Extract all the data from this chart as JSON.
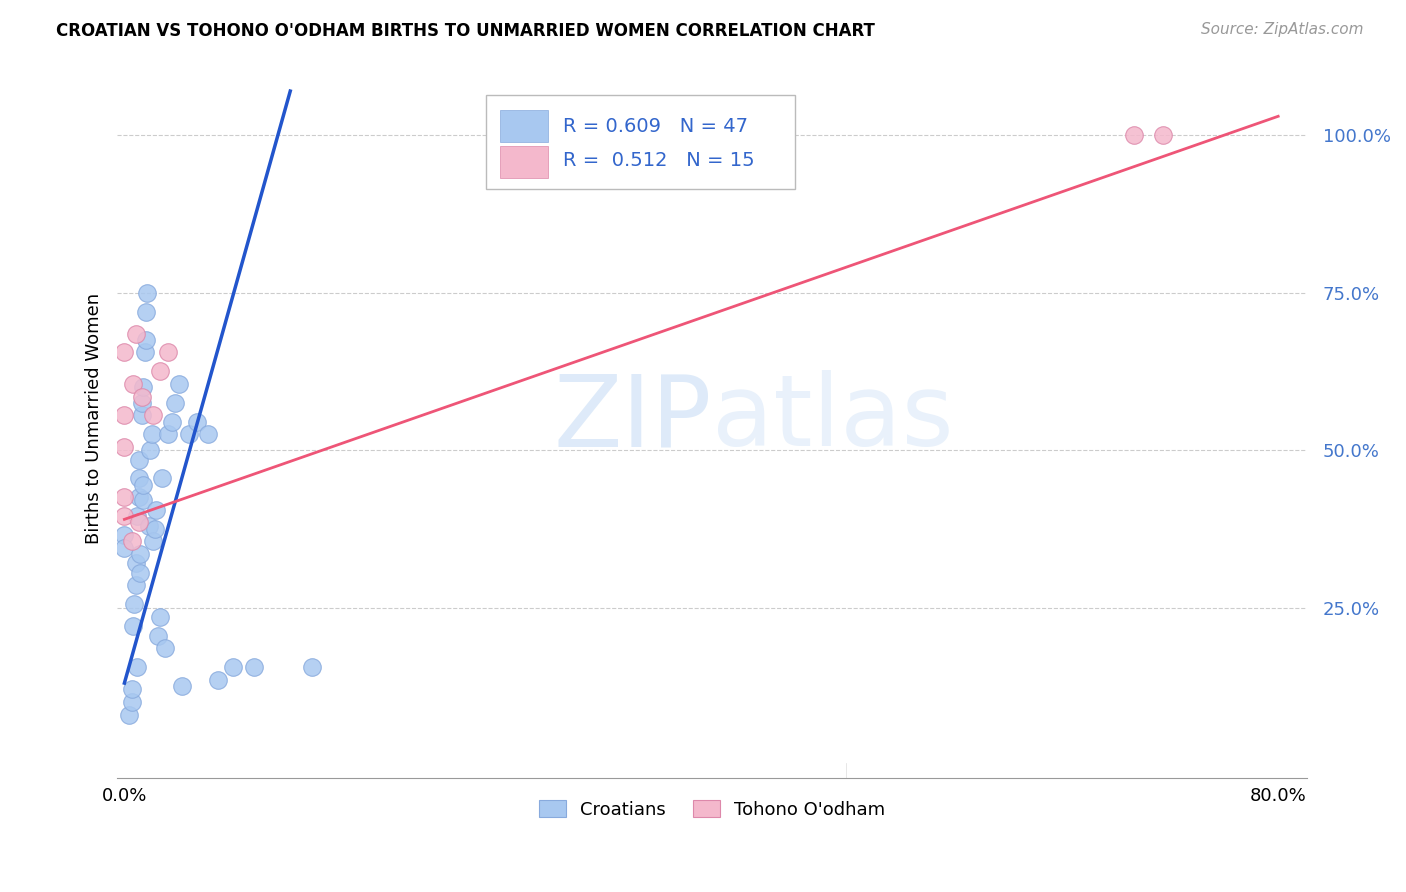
{
  "title": "CROATIAN VS TOHONO O'ODHAM BIRTHS TO UNMARRIED WOMEN CORRELATION CHART",
  "source": "Source: ZipAtlas.com",
  "ylabel": "Births to Unmarried Women",
  "ytick_labels": [
    "25.0%",
    "50.0%",
    "75.0%",
    "100.0%"
  ],
  "ytick_values": [
    0.25,
    0.5,
    0.75,
    1.0
  ],
  "xlim": [
    0.0,
    0.8
  ],
  "ylim": [
    0.0,
    1.1
  ],
  "blue_R": 0.609,
  "blue_N": 47,
  "pink_R": 0.512,
  "pink_N": 15,
  "blue_color": "#a8c8f0",
  "pink_color": "#f4b8cc",
  "blue_line_color": "#2255cc",
  "pink_line_color": "#ee5577",
  "watermark_zip": "ZIP",
  "watermark_atlas": "atlas",
  "legend_label_blue": "Croatians",
  "legend_label_pink": "Tohono O'odham",
  "blue_scatter_x": [
    0.0,
    0.0,
    0.003,
    0.005,
    0.005,
    0.006,
    0.007,
    0.008,
    0.008,
    0.009,
    0.009,
    0.01,
    0.01,
    0.01,
    0.011,
    0.011,
    0.012,
    0.012,
    0.013,
    0.013,
    0.013,
    0.014,
    0.015,
    0.015,
    0.016,
    0.017,
    0.018,
    0.019,
    0.02,
    0.021,
    0.022,
    0.023,
    0.025,
    0.026,
    0.028,
    0.03,
    0.033,
    0.035,
    0.038,
    0.04,
    0.045,
    0.05,
    0.058,
    0.065,
    0.075,
    0.09,
    0.13
  ],
  "blue_scatter_y": [
    0.365,
    0.345,
    0.08,
    0.1,
    0.12,
    0.22,
    0.255,
    0.285,
    0.32,
    0.155,
    0.395,
    0.425,
    0.455,
    0.485,
    0.305,
    0.335,
    0.555,
    0.575,
    0.42,
    0.445,
    0.6,
    0.655,
    0.675,
    0.72,
    0.75,
    0.38,
    0.5,
    0.525,
    0.355,
    0.375,
    0.405,
    0.205,
    0.235,
    0.455,
    0.185,
    0.525,
    0.545,
    0.575,
    0.605,
    0.125,
    0.525,
    0.545,
    0.525,
    0.135,
    0.155,
    0.155,
    0.155
  ],
  "pink_scatter_x": [
    0.0,
    0.0,
    0.0,
    0.0,
    0.0,
    0.005,
    0.006,
    0.008,
    0.01,
    0.012,
    0.02,
    0.025,
    0.03,
    0.7,
    0.72
  ],
  "pink_scatter_y": [
    0.395,
    0.425,
    0.505,
    0.555,
    0.655,
    0.355,
    0.605,
    0.685,
    0.385,
    0.585,
    0.555,
    0.625,
    0.655,
    1.0,
    1.0
  ],
  "blue_line_x0": 0.0,
  "blue_line_y0": 0.13,
  "blue_line_x1": 0.115,
  "blue_line_y1": 1.07,
  "pink_line_x0": 0.0,
  "pink_line_y0": 0.39,
  "pink_line_x1": 0.8,
  "pink_line_y1": 1.03
}
